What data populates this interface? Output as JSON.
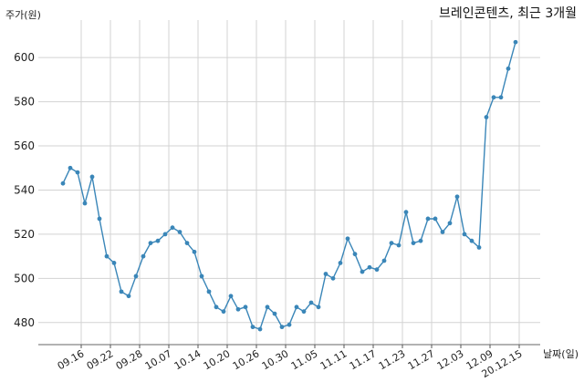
{
  "chart_data": {
    "type": "line",
    "title": "브레인콘텐츠, 최근 3개월",
    "ylabel": "주가(원)",
    "xlabel": "날짜(일)",
    "ylim": [
      470,
      617
    ],
    "yticks": [
      480,
      500,
      520,
      540,
      560,
      580,
      600
    ],
    "xtick_labels": [
      "09.16",
      "09.22",
      "09.28",
      "10.07",
      "10.14",
      "10.20",
      "10.26",
      "10.30",
      "11.05",
      "11.11",
      "11.17",
      "11.23",
      "11.27",
      "12.03",
      "12.09",
      "20.12.15"
    ],
    "xtick_positions": [
      2.5,
      6.5,
      10.5,
      14.5,
      18.5,
      22.5,
      26.5,
      30.5,
      34.5,
      38.5,
      42.5,
      46.5,
      50.5,
      54.5,
      58.5,
      62.5
    ],
    "grid": true,
    "color": "#3a86b8",
    "series": [
      {
        "name": "",
        "values": [
          543,
          550,
          548,
          534,
          546,
          527,
          510,
          507,
          494,
          492,
          501,
          510,
          516,
          517,
          520,
          523,
          521,
          516,
          512,
          501,
          494,
          487,
          485,
          492,
          486,
          487,
          478,
          477,
          487,
          484,
          478,
          479,
          487,
          485,
          489,
          487,
          502,
          500,
          507,
          518,
          511,
          503,
          505,
          504,
          508,
          516,
          515,
          530,
          516,
          517,
          527,
          527,
          521,
          525,
          537,
          520,
          517,
          514,
          573,
          582,
          582,
          595,
          607
        ]
      }
    ]
  }
}
